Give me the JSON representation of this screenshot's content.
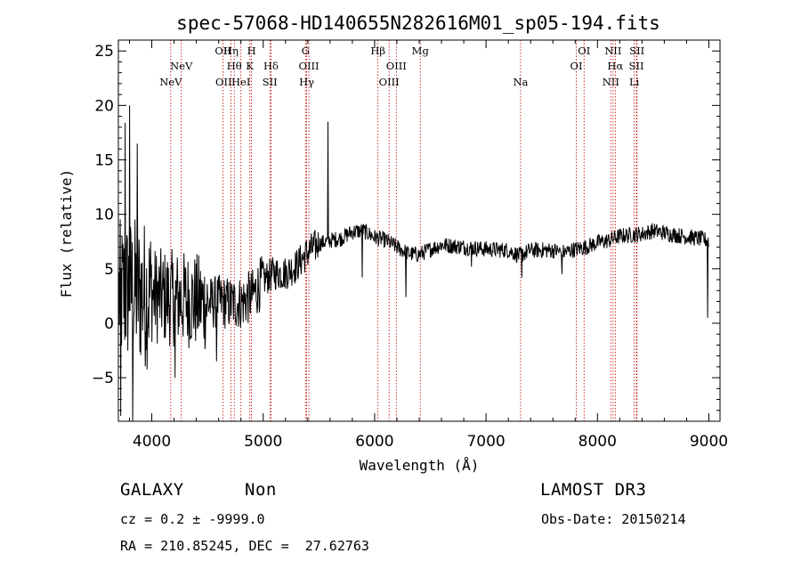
{
  "chart_data": {
    "type": "line",
    "title": "spec-57068-HD140655N282616M01_sp05-194.fits",
    "xlabel": "Wavelength (Å)",
    "ylabel": "Flux (relative)",
    "xlim": [
      3700,
      9100
    ],
    "ylim": [
      -9,
      26
    ],
    "xticks": [
      4000,
      5000,
      6000,
      7000,
      8000,
      9000
    ],
    "yticks": [
      -5,
      0,
      5,
      10,
      15,
      20,
      25
    ],
    "spectral_lines": [
      {
        "label": "NeV",
        "wave": 4170,
        "row": 3
      },
      {
        "label": "NeV",
        "wave": 4265,
        "row": 2
      },
      {
        "label": "OII",
        "wave": 4640,
        "row": 1
      },
      {
        "label": "OII",
        "wave": 4645,
        "row": 3
      },
      {
        "label": "Hη",
        "wave": 4710,
        "row": 1
      },
      {
        "label": "Hθ",
        "wave": 4740,
        "row": 2
      },
      {
        "label": "HeI",
        "wave": 4800,
        "row": 3
      },
      {
        "label": "H",
        "wave": 4895,
        "row": 1
      },
      {
        "label": "K",
        "wave": 4880,
        "row": 2
      },
      {
        "label": "Hδ",
        "wave": 5070,
        "row": 2
      },
      {
        "label": "SII",
        "wave": 5060,
        "row": 3
      },
      {
        "label": "G",
        "wave": 5380,
        "row": 1
      },
      {
        "label": "OIII",
        "wave": 5410,
        "row": 2
      },
      {
        "label": "Hγ",
        "wave": 5390,
        "row": 3
      },
      {
        "label": "Hβ",
        "wave": 6030,
        "row": 1
      },
      {
        "label": "OIII",
        "wave": 6130,
        "row": 3
      },
      {
        "label": "OIII",
        "wave": 6195,
        "row": 2
      },
      {
        "label": "Mg",
        "wave": 6410,
        "row": 1
      },
      {
        "label": "Na",
        "wave": 7310,
        "row": 3
      },
      {
        "label": "OI",
        "wave": 7880,
        "row": 1
      },
      {
        "label": "OI",
        "wave": 7810,
        "row": 2
      },
      {
        "label": "NII",
        "wave": 8140,
        "row": 1
      },
      {
        "label": "Hα",
        "wave": 8160,
        "row": 2
      },
      {
        "label": "NII",
        "wave": 8120,
        "row": 3
      },
      {
        "label": "SII",
        "wave": 8355,
        "row": 1
      },
      {
        "label": "SII",
        "wave": 8350,
        "row": 2
      },
      {
        "label": "Li",
        "wave": 8330,
        "row": 3
      }
    ],
    "series": [
      {
        "name": "flux",
        "anchors": [
          [
            3700,
            2.5
          ],
          [
            3800,
            3.0
          ],
          [
            3900,
            2.8
          ],
          [
            4000,
            2.6
          ],
          [
            4100,
            2.4
          ],
          [
            4200,
            2.3
          ],
          [
            4300,
            2.2
          ],
          [
            4400,
            2.0
          ],
          [
            4500,
            1.8
          ],
          [
            4600,
            2.0
          ],
          [
            4700,
            1.8
          ],
          [
            4800,
            1.9
          ],
          [
            4900,
            2.5
          ],
          [
            5000,
            4.0
          ],
          [
            5100,
            4.6
          ],
          [
            5200,
            4.6
          ],
          [
            5300,
            5.3
          ],
          [
            5400,
            6.5
          ],
          [
            5500,
            7.3
          ],
          [
            5600,
            7.6
          ],
          [
            5700,
            7.8
          ],
          [
            5800,
            8.4
          ],
          [
            5900,
            8.5
          ],
          [
            6000,
            7.9
          ],
          [
            6100,
            7.6
          ],
          [
            6200,
            7.0
          ],
          [
            6300,
            6.4
          ],
          [
            6400,
            6.3
          ],
          [
            6500,
            6.8
          ],
          [
            6600,
            7.2
          ],
          [
            6800,
            7.0
          ],
          [
            7000,
            6.8
          ],
          [
            7200,
            6.7
          ],
          [
            7300,
            6.2
          ],
          [
            7400,
            6.7
          ],
          [
            7600,
            6.7
          ],
          [
            7700,
            6.5
          ],
          [
            7800,
            6.8
          ],
          [
            7900,
            7.0
          ],
          [
            8000,
            7.4
          ],
          [
            8100,
            7.6
          ],
          [
            8200,
            8.0
          ],
          [
            8300,
            8.1
          ],
          [
            8400,
            8.2
          ],
          [
            8500,
            8.5
          ],
          [
            8700,
            8.1
          ],
          [
            8900,
            7.8
          ],
          [
            9000,
            7.6
          ]
        ],
        "features": [
          [
            3720,
            -8.5
          ],
          [
            3760,
            18.4
          ],
          [
            3800,
            20.0
          ],
          [
            3830,
            -9.0
          ],
          [
            3870,
            16.5
          ],
          [
            4210,
            -5.0
          ],
          [
            4580,
            -3.5
          ],
          [
            5580,
            18.5
          ],
          [
            5890,
            4.2
          ],
          [
            6280,
            2.4
          ],
          [
            6870,
            5.2
          ],
          [
            7320,
            4.2
          ],
          [
            7680,
            4.5
          ],
          [
            8990,
            0.5
          ]
        ]
      }
    ]
  },
  "footer": {
    "object_type": "GALAXY",
    "subclass": "Non",
    "survey": "LAMOST DR3",
    "cz": "cz = 0.2 ± -9999.0",
    "obs_date": "Obs-Date: 20150214",
    "coords": "RA = 210.85245, DEC =  27.62763"
  },
  "colors": {
    "axis": "#000000",
    "spectrum": "#000000",
    "line_marker": "#c00000"
  }
}
